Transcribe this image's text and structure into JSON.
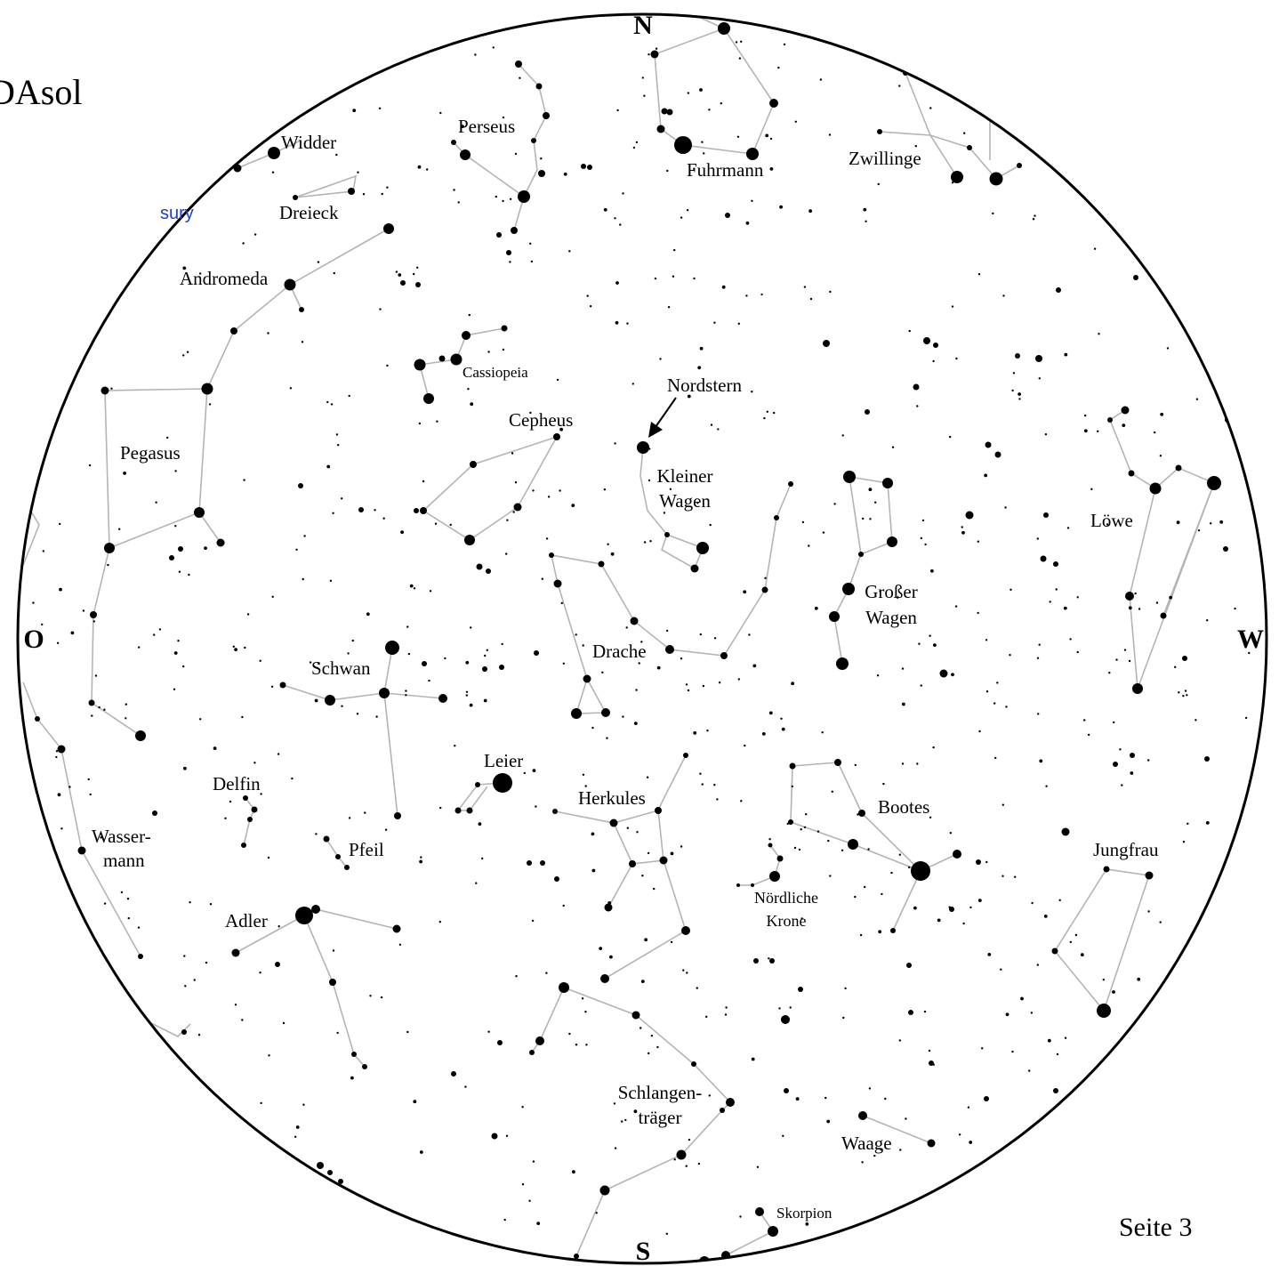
{
  "header": {
    "title": "DAsol",
    "fragment": "sury"
  },
  "footer": {
    "page": "Seite 3"
  },
  "compass": {
    "north": "N",
    "south": "S",
    "east": "O",
    "west": "W"
  },
  "labels": {
    "widder": "Widder",
    "dreieck": "Dreieck",
    "perseus": "Perseus",
    "fuhrmann": "Fuhrmann",
    "zwillinge": "Zwillinge",
    "andromeda": "Andromeda",
    "cassiopeia": "Cassiopeia",
    "nordstern": "Nordstern",
    "cepheus": "Cepheus",
    "kleiner_wagen_1": "Kleiner",
    "kleiner_wagen_2": "Wagen",
    "pegasus": "Pegasus",
    "loewe": "Löwe",
    "grosser_wagen_1": "Großer",
    "grosser_wagen_2": "Wagen",
    "drache": "Drache",
    "schwan": "Schwan",
    "leier": "Leier",
    "delfin": "Delfin",
    "herkules": "Herkules",
    "bootes": "Bootes",
    "wassermann_1": "Wasser-",
    "wassermann_2": "mann",
    "pfeil": "Pfeil",
    "jungfrau": "Jungfrau",
    "noerdliche_krone_1": "Nördliche",
    "noerdliche_krone_2": "Krone",
    "adler": "Adler",
    "schlangentraeger_1": "Schlangen-",
    "schlangentraeger_2": "träger",
    "waage": "Waage",
    "skorpion": "Skorpion"
  },
  "colors": {
    "ink": "#000000",
    "lines": "#b4b4b4",
    "fragment": "#1a3fcf",
    "background": "#ffffff"
  }
}
